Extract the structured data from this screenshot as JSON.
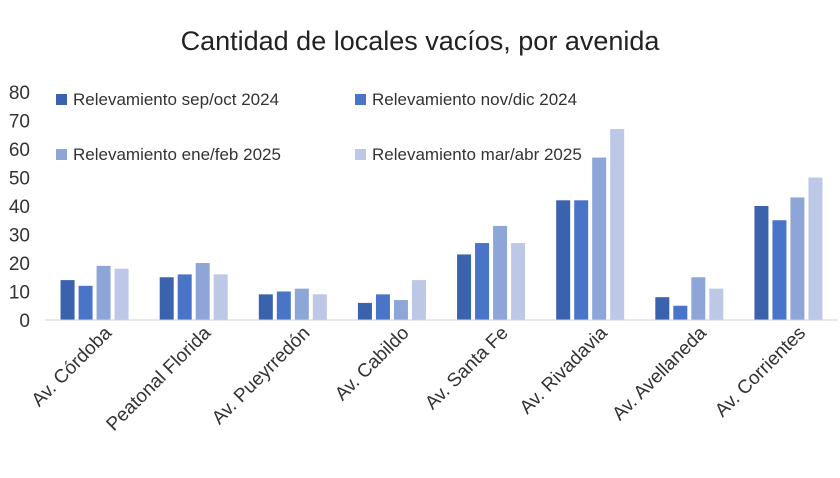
{
  "chart_data": {
    "type": "bar",
    "title": "Cantidad de locales vacíos, por avenida",
    "xlabel": "",
    "ylabel": "",
    "ylim": [
      0,
      80
    ],
    "yticks": [
      0,
      10,
      20,
      30,
      40,
      50,
      60,
      70,
      80
    ],
    "grid": false,
    "legend_position": "top-left",
    "categories": [
      "Av. Córdoba",
      "Peatonal Florida",
      "Av. Pueyrredón",
      "Av. Cabildo",
      "Av. Santa Fe",
      "Av. Rivadavia",
      "Av. Avellaneda",
      "Av. Corrientes"
    ],
    "series": [
      {
        "name": "Relevamiento sep/oct 2024",
        "color": "#3a62ad",
        "values": [
          14,
          15,
          9,
          6,
          23,
          42,
          8,
          40
        ]
      },
      {
        "name": "Relevamiento nov/dic 2024",
        "color": "#4a74c8",
        "values": [
          12,
          16,
          10,
          9,
          27,
          42,
          5,
          35
        ]
      },
      {
        "name": "Relevamiento ene/feb 2025",
        "color": "#8ea5d8",
        "values": [
          19,
          20,
          11,
          7,
          33,
          57,
          15,
          43
        ]
      },
      {
        "name": "Relevamiento mar/abr 2025",
        "color": "#bcc8e6",
        "values": [
          18,
          16,
          9,
          14,
          27,
          67,
          11,
          50
        ]
      }
    ]
  }
}
